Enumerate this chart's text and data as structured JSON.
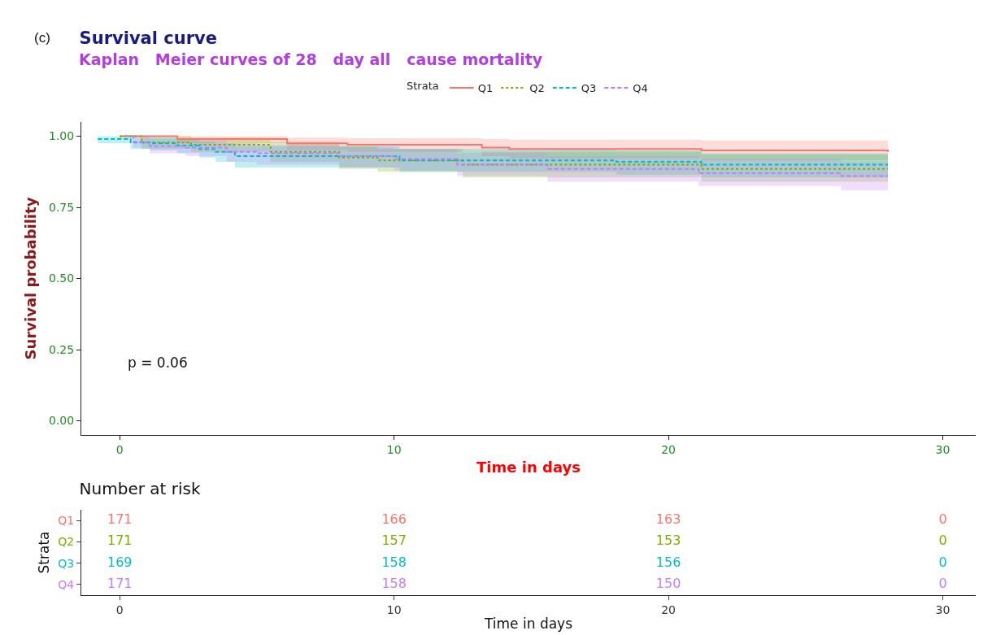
{
  "chart_data": [
    {
      "type": "step",
      "title": "Survival curve",
      "subtitle": "Kaplan   Meier curves of 28   day all   cause mortality",
      "xlabel": "Time in days",
      "ylabel": "Survival probability",
      "legend_title": "Strata",
      "legend": "top",
      "annotations": [
        "(c)",
        "p = 0.06"
      ],
      "xlim": [
        -1.4,
        31.2
      ],
      "xticks": [
        0,
        10,
        20,
        30
      ],
      "ylim": [
        -0.05,
        1.05
      ],
      "yticks": [
        {
          "value": 0,
          "label": "0.00"
        },
        {
          "value": 0.25,
          "label": "0.25"
        },
        {
          "value": 0.5,
          "label": "0.50"
        },
        {
          "value": 0.75,
          "label": "0.75"
        },
        {
          "value": 1,
          "label": "1.00"
        }
      ],
      "series": [
        {
          "name": "Q1",
          "color": "#f8766d",
          "line_style": "solid",
          "x": [
            0,
            2.1,
            6.1,
            8.3,
            13.2,
            14.2,
            21.2,
            28
          ],
          "values": [
            1,
            0.99,
            0.975,
            0.97,
            0.96,
            0.955,
            0.95,
            0.945
          ],
          "upper": [
            1,
            1,
            0.995,
            0.993,
            0.99,
            0.988,
            0.985,
            0.983
          ],
          "lower": [
            1,
            0.975,
            0.952,
            0.945,
            0.93,
            0.922,
            0.915,
            0.91
          ]
        },
        {
          "name": "Q2",
          "color": "#7cae00",
          "line_style": "dotted",
          "x": [
            0,
            0.8,
            2.6,
            5.5,
            8.0,
            9.4,
            12.5,
            21.2,
            28
          ],
          "values": [
            1,
            0.978,
            0.97,
            0.945,
            0.925,
            0.915,
            0.9,
            0.885,
            0.885
          ],
          "upper": [
            1,
            1,
            0.995,
            0.98,
            0.965,
            0.955,
            0.945,
            0.935,
            0.935
          ],
          "lower": [
            1,
            0.956,
            0.945,
            0.91,
            0.885,
            0.875,
            0.855,
            0.84,
            0.84
          ]
        },
        {
          "name": "Q3",
          "color": "#00bfc4",
          "line_style": "dashed",
          "x": [
            -0.8,
            0.4,
            1.1,
            2.1,
            2.9,
            3.5,
            4.2,
            10.2,
            18.1,
            21.2,
            28
          ],
          "values": [
            0.99,
            0.978,
            0.975,
            0.967,
            0.955,
            0.945,
            0.93,
            0.915,
            0.91,
            0.9,
            0.9
          ],
          "upper": [
            1,
            0.995,
            0.995,
            0.99,
            0.98,
            0.975,
            0.965,
            0.955,
            0.95,
            0.94,
            0.94
          ],
          "lower": [
            0.975,
            0.955,
            0.95,
            0.94,
            0.925,
            0.91,
            0.89,
            0.875,
            0.865,
            0.855,
            0.855
          ]
        },
        {
          "name": "Q4",
          "color": "#c77cff",
          "line_style": "dashed",
          "x": [
            0.2,
            0.5,
            1.1,
            2.4,
            3.9,
            5.0,
            8.0,
            10.0,
            12.3,
            15.6,
            21.1,
            26.3,
            28
          ],
          "values": [
            1,
            0.98,
            0.965,
            0.96,
            0.945,
            0.94,
            0.93,
            0.92,
            0.9,
            0.885,
            0.87,
            0.86,
            0.86
          ],
          "upper": [
            1,
            1,
            0.99,
            0.985,
            0.975,
            0.97,
            0.96,
            0.955,
            0.94,
            0.93,
            0.92,
            0.91,
            0.91
          ],
          "lower": [
            1,
            0.96,
            0.94,
            0.93,
            0.91,
            0.9,
            0.89,
            0.88,
            0.86,
            0.84,
            0.825,
            0.81,
            0.81
          ]
        }
      ]
    },
    {
      "type": "heatmap",
      "title": "Number at risk",
      "xlabel": "Time in days",
      "ylabel": "Strata",
      "x": [
        0,
        10,
        20,
        30
      ],
      "xlim": [
        -1.4,
        31.2
      ],
      "xticks": [
        0,
        10,
        20,
        30
      ],
      "y_categories": [
        "Q1",
        "Q2",
        "Q3",
        "Q4"
      ],
      "data_labels": true,
      "colors": [
        "#f8766d",
        "#7cae00",
        "#00bfc4",
        "#c77cff"
      ],
      "cells": [
        [
          171,
          166,
          163,
          0
        ],
        [
          171,
          157,
          153,
          0
        ],
        [
          169,
          158,
          156,
          0
        ],
        [
          171,
          158,
          150,
          0
        ]
      ]
    }
  ]
}
